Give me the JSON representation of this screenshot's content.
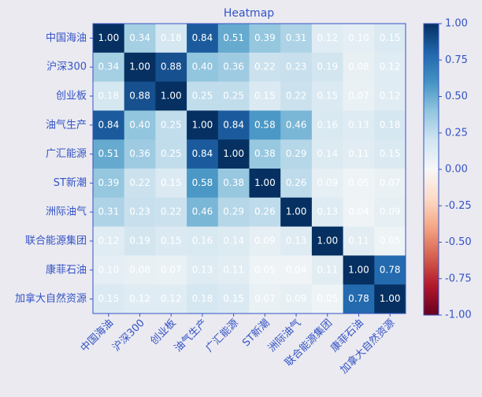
{
  "chart_data": {
    "type": "heatmap",
    "title": "Heatmap",
    "x_categories": [
      "中国海油",
      "沪深300",
      "创业板",
      "油气生产",
      "广汇能源",
      "ST新潮",
      "洲际油气",
      "联合能源集团",
      "康菲石油",
      "加拿大自然资源"
    ],
    "y_categories": [
      "中国海油",
      "沪深300",
      "创业板",
      "油气生产",
      "广汇能源",
      "ST新潮",
      "洲际油气",
      "联合能源集团",
      "康菲石油",
      "加拿大自然资源"
    ],
    "values": [
      [
        1,
        0.34,
        0.18,
        0.84,
        0.51,
        0.39,
        0.31,
        0.12,
        0.1,
        0.15
      ],
      [
        0.34,
        1,
        0.88,
        0.4,
        0.36,
        0.22,
        0.23,
        0.19,
        0.08,
        0.12
      ],
      [
        0.18,
        0.88,
        1,
        0.25,
        0.25,
        0.15,
        0.22,
        0.15,
        0.07,
        0.12
      ],
      [
        0.84,
        0.4,
        0.25,
        1,
        0.84,
        0.58,
        0.46,
        0.16,
        0.13,
        0.18
      ],
      [
        0.51,
        0.36,
        0.25,
        0.84,
        1,
        0.38,
        0.29,
        0.14,
        0.11,
        0.15
      ],
      [
        0.39,
        0.22,
        0.15,
        0.58,
        0.38,
        1,
        0.26,
        0.09,
        0.05,
        0.07
      ],
      [
        0.31,
        0.23,
        0.22,
        0.46,
        0.29,
        0.26,
        1,
        0.13,
        0.04,
        0.09
      ],
      [
        0.12,
        0.19,
        0.15,
        0.16,
        0.14,
        0.09,
        0.13,
        1,
        0.11,
        0.05
      ],
      [
        0.1,
        0.08,
        0.07,
        0.13,
        0.11,
        0.05,
        0.04,
        0.11,
        1,
        0.78
      ],
      [
        0.15,
        0.12,
        0.12,
        0.18,
        0.15,
        0.07,
        0.09,
        0.05,
        0.78,
        1
      ]
    ],
    "value_labels": [
      [
        "1.00",
        "0.34",
        "0.18",
        "0.84",
        "0.51",
        "0.39",
        "0.31",
        "0.12",
        "0.10",
        "0.15"
      ],
      [
        "0.34",
        "1.00",
        "0.88",
        "0.40",
        "0.36",
        "0.22",
        "0.23",
        "0.19",
        "0.08",
        "0.12"
      ],
      [
        "0.18",
        "0.88",
        "1.00",
        "0.25",
        "0.25",
        "0.15",
        "0.22",
        "0.15",
        "0.07",
        "0.12"
      ],
      [
        "0.84",
        "0.40",
        "0.25",
        "1.00",
        "0.84",
        "0.58",
        "0.46",
        "0.16",
        "0.13",
        "0.18"
      ],
      [
        "0.51",
        "0.36",
        "0.25",
        "0.84",
        "1.00",
        "0.38",
        "0.29",
        "0.14",
        "0.11",
        "0.15"
      ],
      [
        "0.39",
        "0.22",
        "0.15",
        "0.58",
        "0.38",
        "1.00",
        "0.26",
        "0.09",
        "0.05",
        "0.07"
      ],
      [
        "0.31",
        "0.23",
        "0.22",
        "0.46",
        "0.29",
        "0.26",
        "1.00",
        "0.13",
        "0.04",
        "0.09"
      ],
      [
        "0.12",
        "0.19",
        "0.15",
        "0.16",
        "0.14",
        "0.09",
        "0.13",
        "1.00",
        "0.11",
        "0.05"
      ],
      [
        "0.10",
        "0.08",
        "0.07",
        "0.13",
        "0.11",
        "0.05",
        "0.04",
        "0.11",
        "1.00",
        "0.78"
      ],
      [
        "0.15",
        "0.12",
        "0.12",
        "0.18",
        "0.15",
        "0.07",
        "0.09",
        "0.05",
        "0.78",
        "1.00"
      ]
    ],
    "colormap": "RdBu",
    "clim": [
      -1,
      1
    ],
    "cticks": [
      {
        "value": -1,
        "label": "-1.00"
      },
      -0.75,
      {
        "value": -0.5,
        "label": "-0.50"
      },
      -0.25,
      {
        "value": 0,
        "label": "0.00"
      },
      0.25,
      {
        "value": 0.5,
        "label": "0.50"
      },
      0.75,
      {
        "value": 1,
        "label": "1.00"
      }
    ]
  }
}
